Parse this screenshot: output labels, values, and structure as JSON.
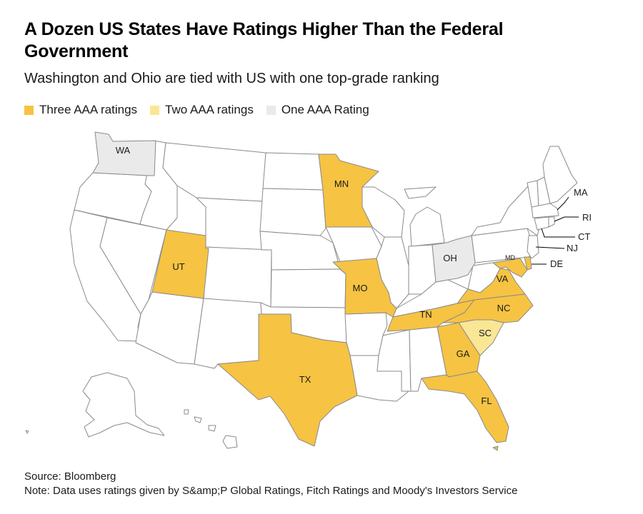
{
  "header": {
    "title": "A Dozen US States Have Ratings Higher Than the Federal Government",
    "subtitle": "Washington and Ohio are tied with US with one top-grade ranking"
  },
  "legend": [
    {
      "label": "Three AAA ratings",
      "color": "#f6c343"
    },
    {
      "label": "Two AAA ratings",
      "color": "#f9e796"
    },
    {
      "label": "One AAA Rating",
      "color": "#eaeaea"
    }
  ],
  "colors": {
    "three": "#f6c343",
    "two": "#f9e796",
    "one": "#eaeaea",
    "none": "#ffffff",
    "border": "#8a8a8a"
  },
  "map": {
    "states": [
      {
        "code": "WA",
        "label": "WA",
        "rating": "one"
      },
      {
        "code": "MN",
        "label": "MN",
        "rating": "three"
      },
      {
        "code": "UT",
        "label": "UT",
        "rating": "three"
      },
      {
        "code": "MO",
        "label": "MO",
        "rating": "three"
      },
      {
        "code": "TX",
        "label": "TX",
        "rating": "three"
      },
      {
        "code": "OH",
        "label": "OH",
        "rating": "one"
      },
      {
        "code": "TN",
        "label": "TN",
        "rating": "three"
      },
      {
        "code": "VA",
        "label": "VA",
        "rating": "three"
      },
      {
        "code": "MD",
        "label": "MD",
        "rating": "three"
      },
      {
        "code": "NC",
        "label": "NC",
        "rating": "three"
      },
      {
        "code": "SC",
        "label": "SC",
        "rating": "two"
      },
      {
        "code": "GA",
        "label": "GA",
        "rating": "three"
      },
      {
        "code": "FL",
        "label": "FL",
        "rating": "three"
      },
      {
        "code": "DE",
        "label": "DE",
        "rating": "three"
      }
    ],
    "callouts": [
      "MA",
      "RI",
      "CT",
      "NJ",
      "DE"
    ]
  },
  "footer": {
    "source": "Source: Bloomberg",
    "note": "Note: Data uses ratings given by S&amp;P Global Ratings, Fitch Ratings and Moody's Investors Service"
  }
}
